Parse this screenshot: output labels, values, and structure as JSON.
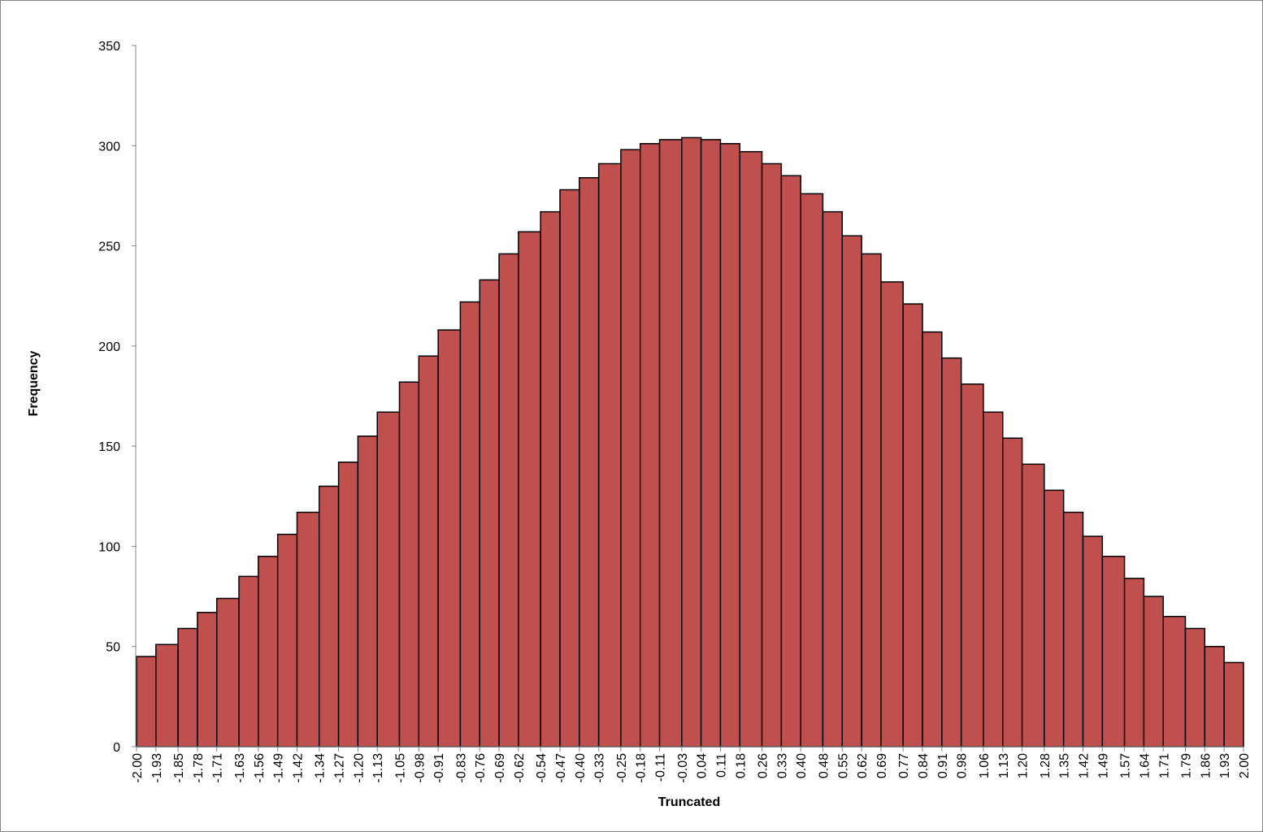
{
  "chart_data": {
    "type": "histogram",
    "x_label": "Truncated",
    "y_label": "Frequency",
    "bins": [
      -2.0,
      -1.93,
      -1.85,
      -1.78,
      -1.71,
      -1.63,
      -1.56,
      -1.49,
      -1.42,
      -1.34,
      -1.27,
      -1.2,
      -1.13,
      -1.05,
      -0.98,
      -0.91,
      -0.83,
      -0.76,
      -0.69,
      -0.62,
      -0.54,
      -0.47,
      -0.4,
      -0.33,
      -0.25,
      -0.18,
      -0.11,
      -0.03,
      0.04,
      0.11,
      0.18,
      0.26,
      0.33,
      0.4,
      0.48,
      0.55,
      0.62,
      0.69,
      0.77,
      0.84,
      0.91,
      0.98,
      1.06,
      1.13,
      1.2,
      1.28,
      1.35,
      1.42,
      1.49,
      1.57,
      1.64,
      1.71,
      1.79,
      1.86,
      1.93,
      2.0
    ],
    "values": [
      45,
      51,
      59,
      67,
      74,
      85,
      95,
      106,
      117,
      130,
      142,
      155,
      167,
      182,
      195,
      208,
      222,
      233,
      246,
      257,
      267,
      278,
      284,
      291,
      298,
      301,
      303,
      304,
      303,
      301,
      297,
      291,
      285,
      276,
      267,
      255,
      246,
      232,
      221,
      207,
      194,
      181,
      167,
      154,
      141,
      128,
      117,
      105,
      95,
      84,
      75,
      65,
      59,
      50,
      42
    ],
    "color": "#c0504d",
    "xlim": [
      -2.0,
      2.0
    ],
    "xticks": [
      {
        "value": -2.0,
        "label": "-2.00"
      },
      {
        "value": -1.93,
        "label": "-1.93"
      },
      {
        "value": -1.85,
        "label": "-1.85"
      },
      {
        "value": -1.78,
        "label": "-1.78"
      },
      {
        "value": -1.71,
        "label": "-1.71"
      },
      {
        "value": -1.63,
        "label": "-1.63"
      },
      {
        "value": -1.56,
        "label": "-1.56"
      },
      {
        "value": -1.49,
        "label": "-1.49"
      },
      {
        "value": -1.42,
        "label": "-1.42"
      },
      {
        "value": -1.34,
        "label": "-1.34"
      },
      {
        "value": -1.27,
        "label": "-1.27"
      },
      {
        "value": -1.2,
        "label": "-1.20"
      },
      {
        "value": -1.13,
        "label": "-1.13"
      },
      {
        "value": -1.05,
        "label": "-1.05"
      },
      {
        "value": -0.98,
        "label": "-0.98"
      },
      {
        "value": -0.91,
        "label": "-0.91"
      },
      {
        "value": -0.83,
        "label": "-0.83"
      },
      {
        "value": -0.76,
        "label": "-0.76"
      },
      {
        "value": -0.69,
        "label": "-0.69"
      },
      {
        "value": -0.62,
        "label": "-0.62"
      },
      {
        "value": -0.54,
        "label": "-0.54"
      },
      {
        "value": -0.47,
        "label": "-0.47"
      },
      {
        "value": -0.4,
        "label": "-0.40"
      },
      {
        "value": -0.33,
        "label": "-0.33"
      },
      {
        "value": -0.25,
        "label": "-0.25"
      },
      {
        "value": -0.18,
        "label": "-0.18"
      },
      {
        "value": -0.11,
        "label": "-0.11"
      },
      {
        "value": -0.03,
        "label": "-0.03"
      },
      {
        "value": 0.04,
        "label": "0.04"
      },
      {
        "value": 0.11,
        "label": "0.11"
      },
      {
        "value": 0.18,
        "label": "0.18"
      },
      {
        "value": 0.26,
        "label": "0.26"
      },
      {
        "value": 0.33,
        "label": "0.33"
      },
      {
        "value": 0.4,
        "label": "0.40"
      },
      {
        "value": 0.48,
        "label": "0.48"
      },
      {
        "value": 0.55,
        "label": "0.55"
      },
      {
        "value": 0.62,
        "label": "0.62"
      },
      {
        "value": 0.69,
        "label": "0.69"
      },
      {
        "value": 0.77,
        "label": "0.77"
      },
      {
        "value": 0.84,
        "label": "0.84"
      },
      {
        "value": 0.91,
        "label": "0.91"
      },
      {
        "value": 0.98,
        "label": "0.98"
      },
      {
        "value": 1.06,
        "label": "1.06"
      },
      {
        "value": 1.13,
        "label": "1.13"
      },
      {
        "value": 1.2,
        "label": "1.20"
      },
      {
        "value": 1.28,
        "label": "1.28"
      },
      {
        "value": 1.35,
        "label": "1.35"
      },
      {
        "value": 1.42,
        "label": "1.42"
      },
      {
        "value": 1.49,
        "label": "1.49"
      },
      {
        "value": 1.57,
        "label": "1.57"
      },
      {
        "value": 1.64,
        "label": "1.64"
      },
      {
        "value": 1.71,
        "label": "1.71"
      },
      {
        "value": 1.79,
        "label": "1.79"
      },
      {
        "value": 1.86,
        "label": "1.86"
      },
      {
        "value": 1.93,
        "label": "1.93"
      },
      {
        "value": 2.0,
        "label": "2.00"
      }
    ],
    "ylim": [
      0,
      350
    ],
    "yticks": [
      0,
      50,
      100,
      150,
      200,
      250,
      300,
      350
    ],
    "grid": false
  }
}
